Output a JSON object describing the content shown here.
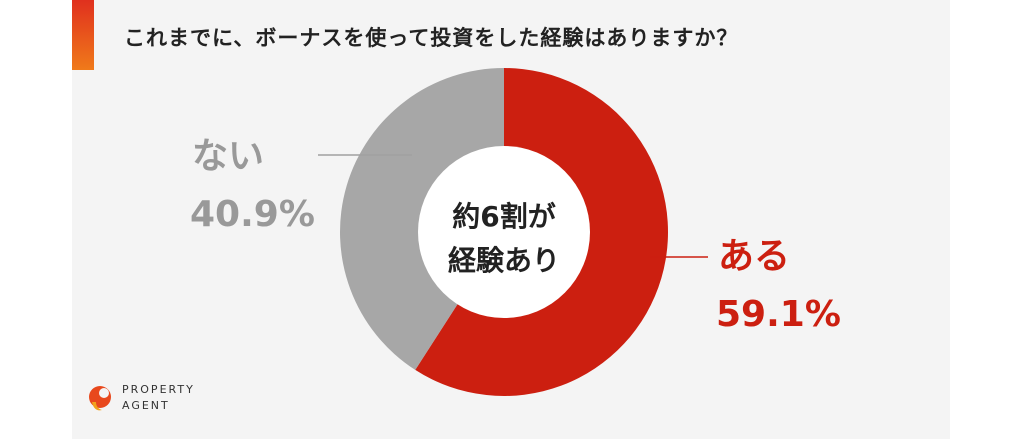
{
  "title": "これまでに、ボーナスを使って投資をした経験はありますか？",
  "center_text": [
    "約6割が",
    "経験あり"
  ],
  "colors": {
    "yes": "#cc1f10",
    "no": "#a7a7a7",
    "accent": "#e0301e"
  },
  "logo": {
    "line1": "PROPERTY",
    "line2": "AGENT",
    "icon": "property-agent-logo-icon"
  },
  "chart_data": {
    "type": "pie",
    "donut": true,
    "title": "これまでに、ボーナスを使って投資をした経験はありますか？",
    "slices": [
      {
        "label": "ある",
        "value": 59.1,
        "value_text": "59.1%",
        "color": "#cc1f10"
      },
      {
        "label": "ない",
        "value": 40.9,
        "value_text": "40.9%",
        "color": "#a7a7a7"
      }
    ]
  }
}
